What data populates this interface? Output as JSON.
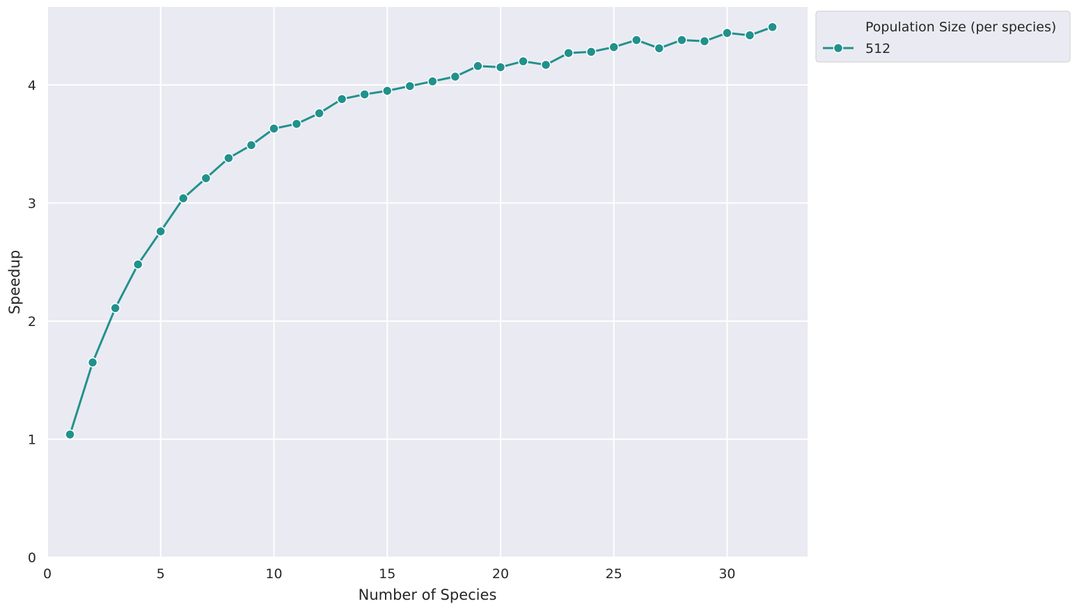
{
  "chart_data": {
    "type": "line",
    "xlabel": "Number of Species",
    "ylabel": "Speedup",
    "xlim": [
      0,
      33.55
    ],
    "ylim": [
      0,
      4.66
    ],
    "xticks": [
      0,
      5,
      10,
      15,
      20,
      25,
      30
    ],
    "yticks": [
      0,
      1,
      2,
      3,
      4
    ],
    "grid": true,
    "legend": {
      "title": "Population Size (per species)",
      "placement": "outside-top-right"
    },
    "colors": {
      "background": "#eaeaf2",
      "grid": "#ffffff",
      "series": "#21918c"
    },
    "series": [
      {
        "name": "512",
        "x": [
          1,
          2,
          3,
          4,
          5,
          6,
          7,
          8,
          9,
          10,
          11,
          12,
          13,
          14,
          15,
          16,
          17,
          18,
          19,
          20,
          21,
          22,
          23,
          24,
          25,
          26,
          27,
          28,
          29,
          30,
          31,
          32
        ],
        "values": [
          1.04,
          1.65,
          2.11,
          2.48,
          2.76,
          3.04,
          3.21,
          3.38,
          3.49,
          3.63,
          3.67,
          3.76,
          3.88,
          3.92,
          3.95,
          3.99,
          4.03,
          4.07,
          4.16,
          4.15,
          4.2,
          4.17,
          4.27,
          4.28,
          4.32,
          4.38,
          4.31,
          4.38,
          4.37,
          4.44,
          4.42,
          4.49
        ]
      }
    ]
  }
}
